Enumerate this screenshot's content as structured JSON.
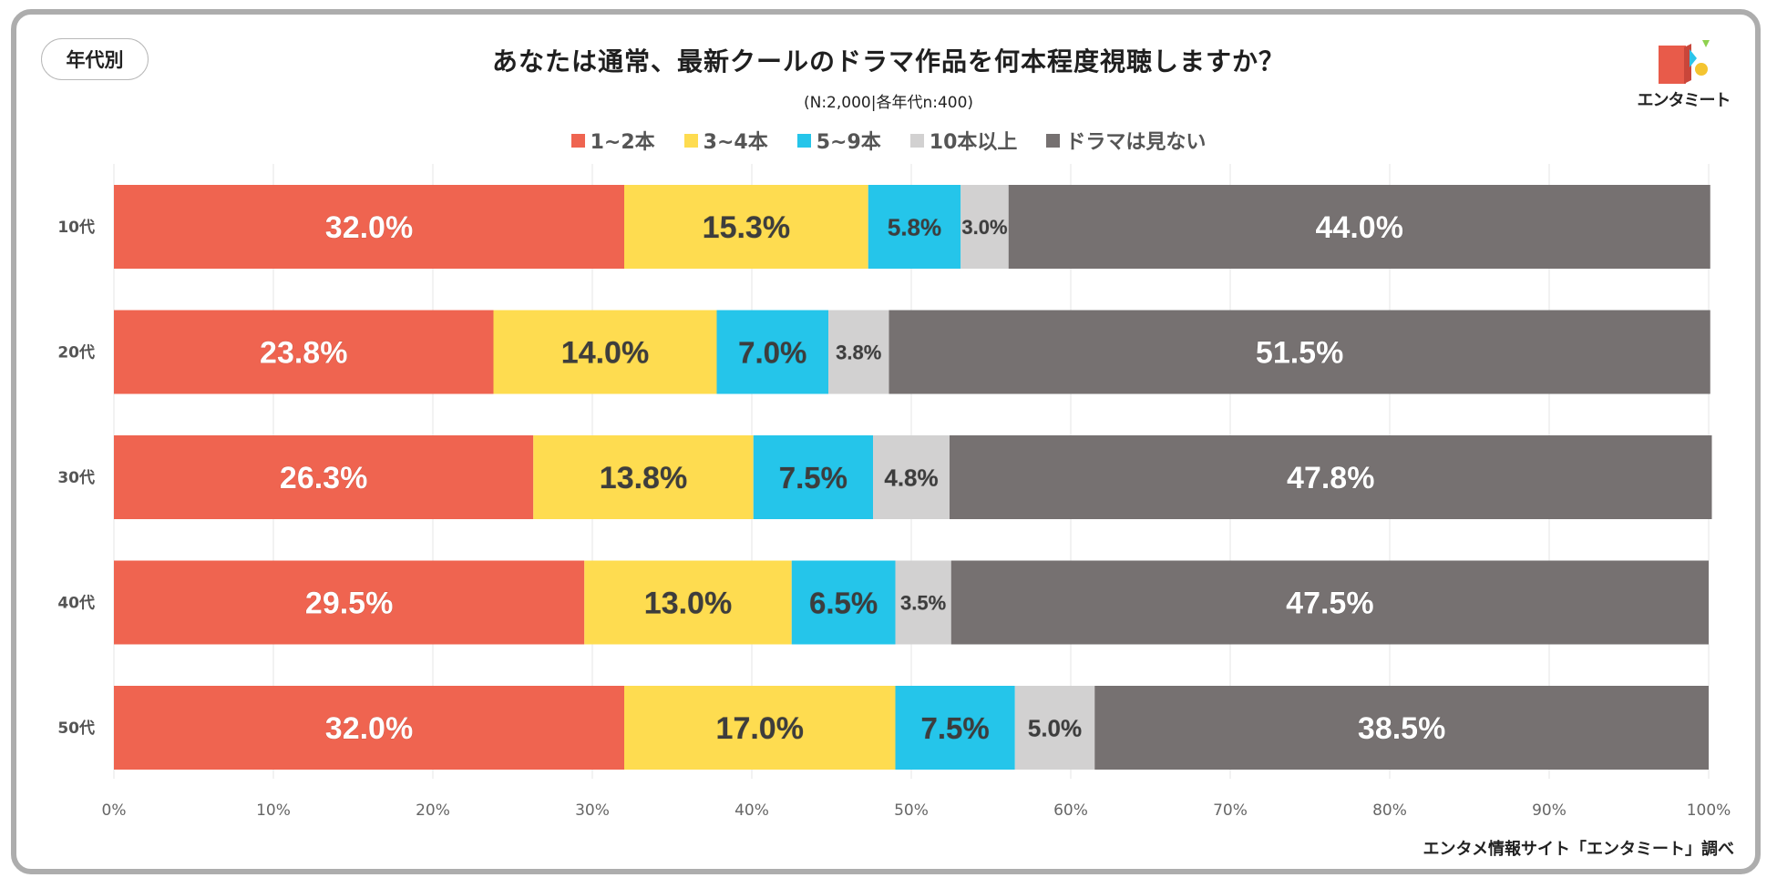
{
  "tag_label": "年代別",
  "logo": {
    "name": "エンタミート",
    "colors": [
      "#e85b4a",
      "#f4c430",
      "#2bc4ea",
      "#8fd14f"
    ]
  },
  "source": "エンタメ情報サイト「エンタミート」調べ",
  "chart_data": {
    "type": "bar",
    "orientation": "horizontal",
    "stacked": true,
    "title": "あなたは通常、最新クールのドラマ作品を何本程度視聴しますか？",
    "subtitle": "(N:2,000|各年代n:400)",
    "categories": [
      "10代",
      "20代",
      "30代",
      "40代",
      "50代"
    ],
    "series": [
      {
        "name": "1~2本",
        "color": "#ef6450",
        "label_color": "#ffffff",
        "values": [
          32.0,
          23.8,
          26.3,
          29.5,
          32.0
        ]
      },
      {
        "name": "3~4本",
        "color": "#fedc50",
        "label_color": "#3d3d3d",
        "values": [
          15.3,
          14.0,
          13.8,
          13.0,
          17.0
        ]
      },
      {
        "name": "5~9本",
        "color": "#25c5ea",
        "label_color": "#3d3d3d",
        "values": [
          5.8,
          7.0,
          7.5,
          6.5,
          7.5
        ]
      },
      {
        "name": "10本以上",
        "color": "#d2d1d1",
        "label_color": "#3d3d3d",
        "values": [
          3.0,
          3.8,
          4.8,
          3.5,
          5.0
        ]
      },
      {
        "name": "ドラマは見ない",
        "color": "#767171",
        "label_color": "#ffffff",
        "values": [
          44.0,
          51.5,
          47.8,
          47.5,
          38.5
        ]
      }
    ],
    "x_ticks": [
      "0%",
      "10%",
      "20%",
      "30%",
      "40%",
      "50%",
      "60%",
      "70%",
      "80%",
      "90%",
      "100%"
    ],
    "xlim": [
      0,
      100
    ],
    "grid": true,
    "legend_position": "top"
  }
}
